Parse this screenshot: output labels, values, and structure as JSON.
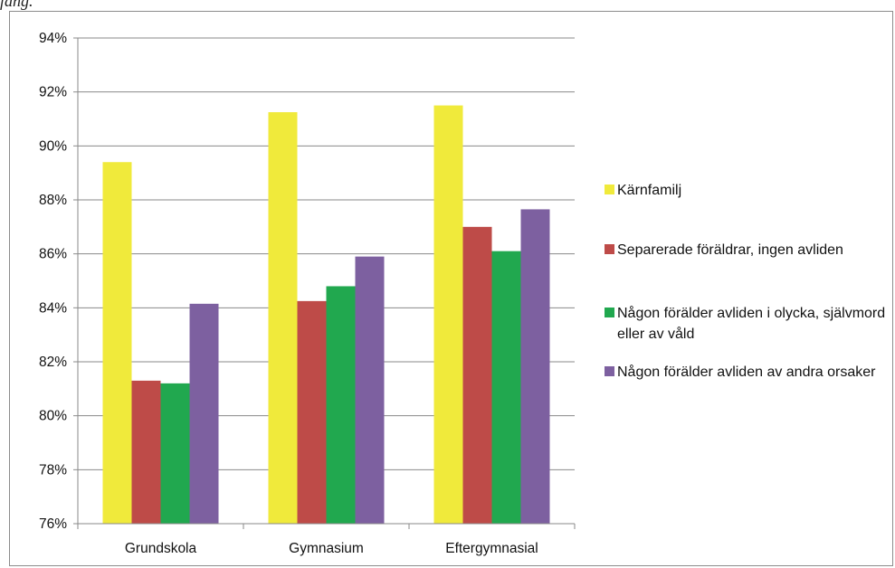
{
  "header": {
    "caption_fragment": "fång."
  },
  "chart_data": {
    "type": "bar",
    "categories": [
      "Grundskola",
      "Gymnasium",
      "Eftergymnasial"
    ],
    "y_ticks": [
      "76%",
      "78%",
      "80%",
      "82%",
      "84%",
      "86%",
      "88%",
      "90%",
      "92%",
      "94%"
    ],
    "ylim": [
      76,
      94
    ],
    "grid": true,
    "legend_position": "right",
    "series": [
      {
        "name": "Kärnfamilj",
        "color": "#f0ea3b",
        "values": [
          89.4,
          91.25,
          91.5
        ]
      },
      {
        "name": "Separerade föräldrar, ingen avliden",
        "color": "#be4b48",
        "values": [
          81.3,
          84.25,
          87.0
        ]
      },
      {
        "name": "Någon förälder avliden i olycka, självmord eller  av våld",
        "color": "#21a84f",
        "values": [
          81.2,
          84.8,
          86.1
        ]
      },
      {
        "name": "Någon förälder avliden av andra orsaker",
        "color": "#7d60a0",
        "values": [
          84.15,
          85.9,
          87.65
        ]
      }
    ]
  }
}
